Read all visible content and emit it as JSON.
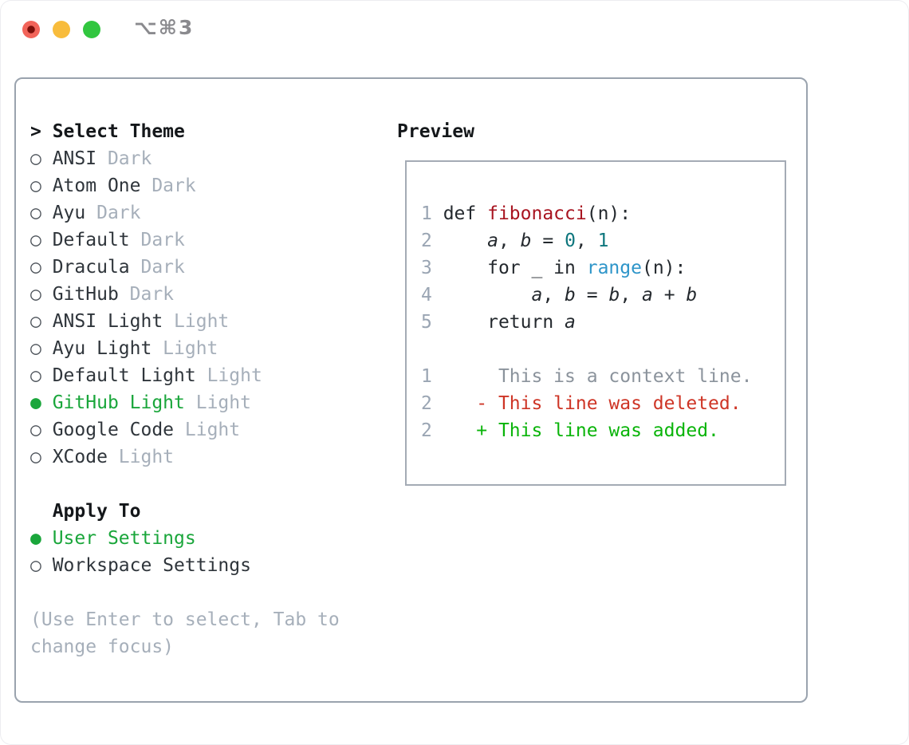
{
  "titlebar": {
    "title": "⌥⌘3"
  },
  "colors": {
    "titlebar_text": "#8a8a8e",
    "light_red": "#f2645a",
    "light_red_dot": "#7c0f0a",
    "light_yellow": "#f8bc3c",
    "light_green": "#31c63f",
    "panel_border": "#9aa3ae",
    "preview_border": "#a4abb5",
    "header_black": "#14171a",
    "item_name": "#2f353b",
    "muted": "#a6afba",
    "radio_outline": "#4e545b",
    "accent_green": "#1aa63b",
    "added_green": "#0ab40a",
    "deleted_red": "#ce3526",
    "function_red": "#a81420",
    "number_teal": "#0e767d",
    "builtin_blue": "#2e95c9",
    "context_gray": "#8b939c",
    "line_number": "#9aa5b3",
    "text_dark": "#24292e"
  },
  "theme_panel": {
    "header": {
      "prompt": ">",
      "label": "Select Theme"
    },
    "items": [
      {
        "marker": "○",
        "name": "ANSI",
        "variant": "Dark",
        "selected": false
      },
      {
        "marker": "○",
        "name": "Atom One",
        "variant": "Dark",
        "selected": false
      },
      {
        "marker": "○",
        "name": "Ayu",
        "variant": "Dark",
        "selected": false
      },
      {
        "marker": "○",
        "name": "Default",
        "variant": "Dark",
        "selected": false
      },
      {
        "marker": "○",
        "name": "Dracula",
        "variant": "Dark",
        "selected": false
      },
      {
        "marker": "○",
        "name": "GitHub",
        "variant": "Dark",
        "selected": false
      },
      {
        "marker": "○",
        "name": "ANSI Light",
        "variant": "Light",
        "selected": false
      },
      {
        "marker": "○",
        "name": "Ayu Light",
        "variant": "Light",
        "selected": false
      },
      {
        "marker": "○",
        "name": "Default Light",
        "variant": "Light",
        "selected": false
      },
      {
        "marker": "●",
        "name": "GitHub Light",
        "variant": "Light",
        "selected": true
      },
      {
        "marker": "○",
        "name": "Google Code",
        "variant": "Light",
        "selected": false
      },
      {
        "marker": "○",
        "name": "XCode",
        "variant": "Light",
        "selected": false
      }
    ],
    "apply_to": {
      "label": "Apply To",
      "options": [
        {
          "marker": "●",
          "label": "User Settings",
          "selected": true
        },
        {
          "marker": "○",
          "label": "Workspace Settings",
          "selected": false
        }
      ]
    },
    "hint": {
      "line1": "(Use Enter to select, Tab to",
      "line2": "change focus)"
    }
  },
  "preview": {
    "header": "Preview",
    "code_lines": [
      {
        "segments": [
          {
            "s": "line-number",
            "t": "1 "
          },
          {
            "s": "code",
            "t": "def "
          },
          {
            "s": "function",
            "t": "fibonacci"
          },
          {
            "s": "code",
            "t": "(n):"
          }
        ]
      },
      {
        "segments": [
          {
            "s": "line-number",
            "t": "2 "
          },
          {
            "s": "code",
            "t": "    "
          },
          {
            "s": "variable",
            "t": "a"
          },
          {
            "s": "code",
            "t": ", "
          },
          {
            "s": "variable",
            "t": "b"
          },
          {
            "s": "code",
            "t": " = "
          },
          {
            "s": "number",
            "t": "0"
          },
          {
            "s": "code",
            "t": ", "
          },
          {
            "s": "number",
            "t": "1"
          }
        ]
      },
      {
        "segments": [
          {
            "s": "line-number",
            "t": "3 "
          },
          {
            "s": "code",
            "t": "    for _ in "
          },
          {
            "s": "builtin",
            "t": "range"
          },
          {
            "s": "code",
            "t": "(n):"
          }
        ]
      },
      {
        "segments": [
          {
            "s": "line-number",
            "t": "4 "
          },
          {
            "s": "code",
            "t": "        "
          },
          {
            "s": "variable",
            "t": "a"
          },
          {
            "s": "code",
            "t": ", "
          },
          {
            "s": "variable",
            "t": "b"
          },
          {
            "s": "code",
            "t": " = "
          },
          {
            "s": "variable",
            "t": "b"
          },
          {
            "s": "code",
            "t": ", "
          },
          {
            "s": "variable",
            "t": "a"
          },
          {
            "s": "code",
            "t": " + "
          },
          {
            "s": "variable",
            "t": "b"
          }
        ]
      },
      {
        "segments": [
          {
            "s": "line-number",
            "t": "5 "
          },
          {
            "s": "code",
            "t": "    return "
          },
          {
            "s": "variable",
            "t": "a"
          }
        ]
      },
      {
        "segments": []
      },
      {
        "segments": [
          {
            "s": "line-number",
            "t": "1 "
          },
          {
            "s": "context",
            "t": "     This is a context line."
          }
        ]
      },
      {
        "segments": [
          {
            "s": "line-number",
            "t": "2 "
          },
          {
            "s": "deleted",
            "t": "   - This line was deleted."
          }
        ]
      },
      {
        "segments": [
          {
            "s": "line-number",
            "t": "2 "
          },
          {
            "s": "added",
            "t": "   + This line was added."
          }
        ]
      }
    ]
  }
}
